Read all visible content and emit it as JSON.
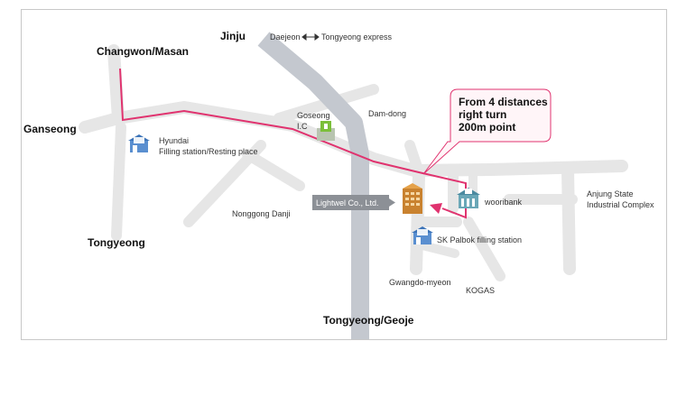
{
  "map": {
    "places": {
      "jinju": "Jinju",
      "changwon": "Changwon/Masan",
      "ganseong": "Ganseong",
      "tongyeong": "Tongyeong",
      "tongyeong_geoje": "Tongyeong/Geoje",
      "daejeon": "Daejeon",
      "tongyeong_express": "Tongyeong express",
      "goseong_line1": "Goseong",
      "goseong_line2": "I.C",
      "dam_dong": "Dam-dong",
      "hyundai_line1": "Hyundai",
      "hyundai_line2": "Filling station/Resting place",
      "nonggong": "Nonggong Danji",
      "lightwel": "Lightwel Co., Ltd.",
      "wooribank": "wooribank",
      "sk_palbok": "SK Palbok filling station",
      "anjung_line1": "Anjung State",
      "anjung_line2": "Industrial Complex",
      "gwangdo": "Gwangdo-myeon",
      "kogas": "KOGAS"
    },
    "callout": {
      "line1": "From 4 distances",
      "line2": "right turn",
      "line3": "200m point"
    },
    "colors": {
      "road": "#e6e6e6",
      "highway": "#c4c8cf",
      "route": "#e0336f",
      "callout_bg": "#fff5f8",
      "label_box": "#8c9096"
    },
    "icons": [
      "gas-station-icon",
      "interchange-icon",
      "bank-icon",
      "office-building-icon",
      "double-arrow-icon"
    ]
  }
}
